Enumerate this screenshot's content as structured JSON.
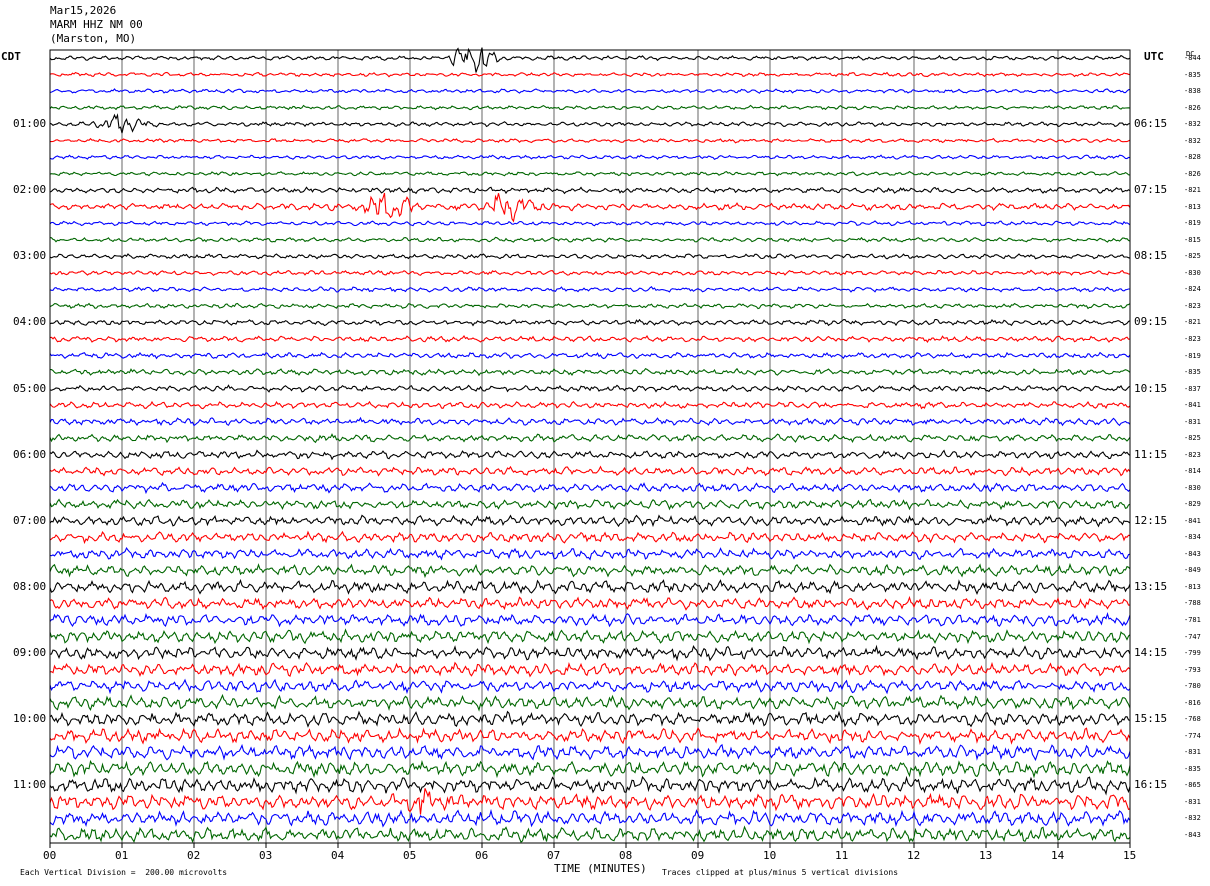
{
  "header": {
    "date": "Mar15,2026",
    "station": "MARM HHZ NM 00",
    "location": "(Marston, MO)"
  },
  "left_tz": "CDT",
  "right_tz": "UTC",
  "dc_label": "DC",
  "footer": {
    "mark": "",
    "scale_text": "Each Vertical Division =  200.00 microvolts",
    "clip_text": "Traces clipped at plus/minus 5 vertical divisions"
  },
  "chart_data": {
    "type": "line",
    "title": "MARM HHZ NM 00",
    "xlabel": "TIME (MINUTES)",
    "x_ticks": [
      "00",
      "01",
      "02",
      "03",
      "04",
      "05",
      "06",
      "07",
      "08",
      "09",
      "10",
      "11",
      "12",
      "13",
      "14",
      "15"
    ],
    "xlim": [
      0,
      15
    ],
    "grid": true,
    "trace_colors": [
      "#000000",
      "#ff0000",
      "#0000ff",
      "#006600"
    ],
    "left_hour_labels": [
      "01:00",
      "02:00",
      "03:00",
      "04:00",
      "05:00",
      "06:00",
      "07:00",
      "08:00",
      "09:00",
      "10:00",
      "11:00"
    ],
    "right_hour_labels": [
      "06:15",
      "07:15",
      "08:15",
      "09:15",
      "10:15",
      "11:15",
      "12:15",
      "13:15",
      "14:15",
      "15:15",
      "16:15"
    ],
    "dc_offsets": [
      -844,
      -835,
      -838,
      -826,
      -832,
      -832,
      -828,
      -826,
      -821,
      -813,
      -819,
      -815,
      -825,
      -830,
      -824,
      -823,
      -821,
      -823,
      -819,
      -835,
      -837,
      -841,
      -831,
      -825,
      -823,
      -814,
      -830,
      -829,
      -841,
      -834,
      -843,
      -849,
      -813,
      -788,
      -781,
      -747,
      -799,
      -793,
      -780,
      -816,
      -768,
      -774,
      -831,
      -835,
      -865,
      -831,
      -832,
      -843
    ],
    "trace_activity": [
      1.0,
      0.9,
      0.9,
      0.9,
      1.0,
      0.9,
      0.9,
      0.9,
      1.3,
      1.6,
      1.0,
      1.0,
      1.1,
      1.1,
      1.1,
      1.1,
      1.3,
      1.3,
      1.3,
      1.4,
      1.4,
      1.5,
      1.6,
      1.7,
      1.8,
      1.9,
      2.0,
      2.1,
      2.3,
      2.3,
      2.4,
      2.5,
      2.8,
      2.6,
      2.7,
      2.9,
      2.9,
      2.8,
      2.8,
      3.0,
      3.1,
      3.1,
      3.2,
      3.3,
      3.5,
      3.6,
      3.3,
      3.3
    ],
    "events": [
      {
        "trace": 0,
        "minute": 5.88,
        "amplitude": 8
      },
      {
        "trace": 4,
        "minute": 0.98,
        "amplitude": 4
      },
      {
        "trace": 9,
        "minute": 4.7,
        "amplitude": 7
      },
      {
        "trace": 9,
        "minute": 6.4,
        "amplitude": 7
      },
      {
        "trace": 45,
        "minute": 5.2,
        "amplitude": 5
      }
    ]
  }
}
